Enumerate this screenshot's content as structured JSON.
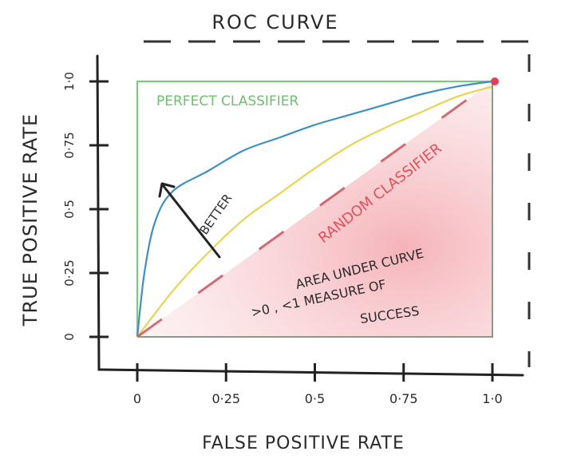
{
  "chart_data": {
    "type": "line",
    "title": "ROC CURVE",
    "xlabel": "FALSE POSITIVE RATE",
    "ylabel": "TRUE POSITIVE RATE",
    "xlim": [
      0,
      1
    ],
    "ylim": [
      0,
      1
    ],
    "x_ticks": [
      "0",
      "0·25",
      "0·5",
      "0·75",
      "1·0"
    ],
    "y_ticks": [
      "0",
      "0·25",
      "0·5",
      "0·75",
      "1·0"
    ],
    "grid": false,
    "series": [
      {
        "name": "PERFECT CLASSIFIER",
        "color": "#7cc97c",
        "x": [
          0,
          0,
          1
        ],
        "y": [
          0,
          1,
          1
        ]
      },
      {
        "name": "",
        "color": "#3d8fc4",
        "x": [
          0,
          0.02,
          0.05,
          0.1,
          0.2,
          0.3,
          0.4,
          0.5,
          0.6,
          0.7,
          0.8,
          0.9,
          1.0
        ],
        "y": [
          0,
          0.25,
          0.45,
          0.57,
          0.65,
          0.73,
          0.78,
          0.83,
          0.87,
          0.91,
          0.95,
          0.98,
          1.0
        ]
      },
      {
        "name": "",
        "color": "#e8d454",
        "x": [
          0,
          0.1,
          0.2,
          0.3,
          0.4,
          0.5,
          0.6,
          0.7,
          0.8,
          0.9,
          1.0
        ],
        "y": [
          0,
          0.18,
          0.33,
          0.46,
          0.56,
          0.66,
          0.75,
          0.82,
          0.88,
          0.94,
          0.98
        ]
      },
      {
        "name": "RANDOM CLASSIFIER",
        "color": "#c0404a",
        "x": [
          0,
          1
        ],
        "y": [
          0,
          1
        ]
      }
    ],
    "annotations": {
      "better": "BETTER",
      "area_line1": "AREA UNDER CURVE",
      "area_line2": ">0 , <1  MEASURE OF",
      "area_line3": "SUCCESS"
    },
    "colors": {
      "area_fill": "#f6c9cc",
      "random_text": "#e0505a",
      "perfect_text": "#6cbf6c",
      "endpoint": "#e0405a"
    }
  }
}
